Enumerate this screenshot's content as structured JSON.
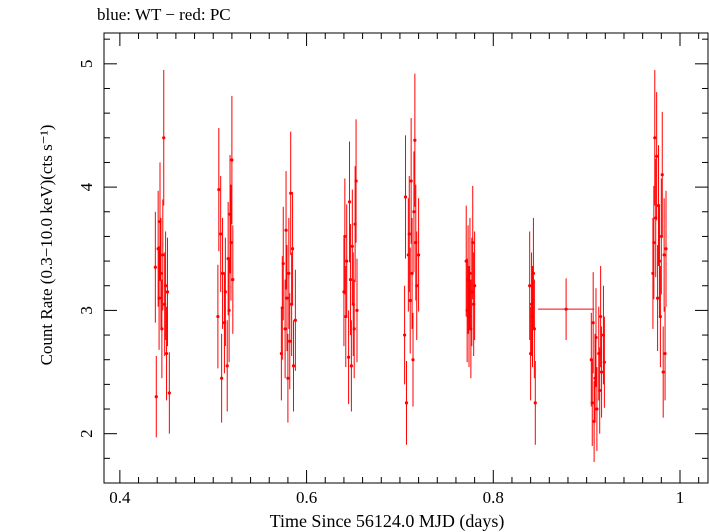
{
  "header": {
    "title": "blue: WT − red: PC"
  },
  "chart_data": {
    "type": "scatter",
    "title": "blue: WT − red: PC",
    "xlabel": "Time Since 56124.0 MJD (days)",
    "ylabel": "Count Rate (0.3−10.0 keV)(cts s⁻¹)",
    "xlim": [
      0.383,
      1.03
    ],
    "ylim": [
      1.6,
      5.25
    ],
    "xticks": [
      0.4,
      0.6,
      0.8,
      1.0
    ],
    "xtick_labels": [
      "0.4",
      "0.6",
      "0.8",
      "1"
    ],
    "yticks": [
      2,
      3,
      4,
      5
    ],
    "ytick_labels": [
      "2",
      "3",
      "4",
      "5"
    ],
    "grid": false,
    "series": [
      {
        "color": "#ff0000",
        "points": [
          {
            "x": 0.438,
            "y": 3.35,
            "err": 0.45
          },
          {
            "x": 0.439,
            "y": 2.3,
            "err": 0.33
          },
          {
            "x": 0.441,
            "y": 3.5,
            "err": 0.47
          },
          {
            "x": 0.442,
            "y": 3.1,
            "err": 0.42
          },
          {
            "x": 0.443,
            "y": 3.72,
            "err": 0.48
          },
          {
            "x": 0.444,
            "y": 3.3,
            "err": 0.45
          },
          {
            "x": 0.445,
            "y": 2.85,
            "err": 0.4
          },
          {
            "x": 0.446,
            "y": 3.45,
            "err": 0.45
          },
          {
            "x": 0.447,
            "y": 4.4,
            "err": 0.55
          },
          {
            "x": 0.448,
            "y": 3.05,
            "err": 0.42
          },
          {
            "x": 0.449,
            "y": 3.2,
            "err": 0.44
          },
          {
            "x": 0.45,
            "y": 2.65,
            "err": 0.38
          },
          {
            "x": 0.451,
            "y": 3.15,
            "err": 0.44
          },
          {
            "x": 0.453,
            "y": 2.33,
            "err": 0.33
          },
          {
            "x": 0.505,
            "y": 2.95,
            "err": 0.42
          },
          {
            "x": 0.506,
            "y": 3.98,
            "err": 0.5
          },
          {
            "x": 0.508,
            "y": 3.62,
            "err": 0.47
          },
          {
            "x": 0.509,
            "y": 2.45,
            "err": 0.36
          },
          {
            "x": 0.51,
            "y": 3.3,
            "err": 0.45
          },
          {
            "x": 0.512,
            "y": 2.9,
            "err": 0.41
          },
          {
            "x": 0.513,
            "y": 3.15,
            "err": 0.44
          },
          {
            "x": 0.515,
            "y": 2.55,
            "err": 0.37
          },
          {
            "x": 0.516,
            "y": 3.42,
            "err": 0.46
          },
          {
            "x": 0.517,
            "y": 3.0,
            "err": 0.42
          },
          {
            "x": 0.518,
            "y": 3.78,
            "err": 0.48
          },
          {
            "x": 0.519,
            "y": 3.55,
            "err": 0.47
          },
          {
            "x": 0.52,
            "y": 4.22,
            "err": 0.52
          },
          {
            "x": 0.521,
            "y": 3.25,
            "err": 0.44
          },
          {
            "x": 0.573,
            "y": 2.65,
            "err": 0.38
          },
          {
            "x": 0.574,
            "y": 3.02,
            "err": 0.42
          },
          {
            "x": 0.575,
            "y": 3.38,
            "err": 0.46
          },
          {
            "x": 0.577,
            "y": 2.85,
            "err": 0.4
          },
          {
            "x": 0.578,
            "y": 3.65,
            "err": 0.48
          },
          {
            "x": 0.579,
            "y": 3.1,
            "err": 0.43
          },
          {
            "x": 0.58,
            "y": 2.45,
            "err": 0.36
          },
          {
            "x": 0.581,
            "y": 3.3,
            "err": 0.45
          },
          {
            "x": 0.582,
            "y": 2.75,
            "err": 0.39
          },
          {
            "x": 0.583,
            "y": 3.95,
            "err": 0.5
          },
          {
            "x": 0.584,
            "y": 3.05,
            "err": 0.42
          },
          {
            "x": 0.585,
            "y": 3.5,
            "err": 0.46
          },
          {
            "x": 0.586,
            "y": 2.55,
            "err": 0.37
          },
          {
            "x": 0.588,
            "y": 2.92,
            "err": 0.41
          },
          {
            "x": 0.64,
            "y": 3.15,
            "err": 0.44
          },
          {
            "x": 0.641,
            "y": 3.6,
            "err": 0.47
          },
          {
            "x": 0.642,
            "y": 2.95,
            "err": 0.41
          },
          {
            "x": 0.643,
            "y": 3.4,
            "err": 0.46
          },
          {
            "x": 0.645,
            "y": 2.62,
            "err": 0.38
          },
          {
            "x": 0.646,
            "y": 3.88,
            "err": 0.49
          },
          {
            "x": 0.647,
            "y": 3.25,
            "err": 0.45
          },
          {
            "x": 0.648,
            "y": 2.55,
            "err": 0.37
          },
          {
            "x": 0.649,
            "y": 3.52,
            "err": 0.46
          },
          {
            "x": 0.65,
            "y": 3.05,
            "err": 0.42
          },
          {
            "x": 0.651,
            "y": 2.85,
            "err": 0.4
          },
          {
            "x": 0.652,
            "y": 3.7,
            "err": 0.47
          },
          {
            "x": 0.653,
            "y": 4.05,
            "err": 0.5
          },
          {
            "x": 0.654,
            "y": 3.0,
            "err": 0.42
          },
          {
            "x": 0.705,
            "y": 2.8,
            "err": 0.4
          },
          {
            "x": 0.706,
            "y": 3.92,
            "err": 0.5
          },
          {
            "x": 0.707,
            "y": 2.25,
            "err": 0.34
          },
          {
            "x": 0.709,
            "y": 3.45,
            "err": 0.46
          },
          {
            "x": 0.71,
            "y": 3.62,
            "err": 0.47
          },
          {
            "x": 0.711,
            "y": 3.08,
            "err": 0.43
          },
          {
            "x": 0.712,
            "y": 4.05,
            "err": 0.51
          },
          {
            "x": 0.713,
            "y": 3.3,
            "err": 0.45
          },
          {
            "x": 0.714,
            "y": 2.6,
            "err": 0.38
          },
          {
            "x": 0.715,
            "y": 3.8,
            "err": 0.49
          },
          {
            "x": 0.716,
            "y": 4.38,
            "err": 0.54
          },
          {
            "x": 0.717,
            "y": 3.55,
            "err": 0.47
          },
          {
            "x": 0.718,
            "y": 3.2,
            "err": 0.44
          },
          {
            "x": 0.72,
            "y": 3.45,
            "err": 0.46
          },
          {
            "x": 0.771,
            "y": 3.4,
            "err": 0.45
          },
          {
            "x": 0.772,
            "y": 3.0,
            "err": 0.42
          },
          {
            "x": 0.773,
            "y": 3.25,
            "err": 0.44
          },
          {
            "x": 0.774,
            "y": 2.95,
            "err": 0.41
          },
          {
            "x": 0.775,
            "y": 3.3,
            "err": 0.45
          },
          {
            "x": 0.776,
            "y": 2.85,
            "err": 0.4
          },
          {
            "x": 0.777,
            "y": 3.15,
            "err": 0.44
          },
          {
            "x": 0.778,
            "y": 3.55,
            "err": 0.46
          },
          {
            "x": 0.779,
            "y": 3.05,
            "err": 0.42
          },
          {
            "x": 0.78,
            "y": 3.2,
            "err": 0.44
          },
          {
            "x": 0.839,
            "y": 3.2,
            "err": 0.44
          },
          {
            "x": 0.84,
            "y": 2.65,
            "err": 0.38
          },
          {
            "x": 0.841,
            "y": 3.05,
            "err": 0.42
          },
          {
            "x": 0.842,
            "y": 2.95,
            "err": 0.41
          },
          {
            "x": 0.843,
            "y": 3.3,
            "err": 0.45
          },
          {
            "x": 0.844,
            "y": 2.85,
            "err": 0.4
          },
          {
            "x": 0.845,
            "y": 2.25,
            "err": 0.34
          },
          {
            "x": 0.878,
            "y": 3.01,
            "err": 0.25,
            "xerr": 0.03
          },
          {
            "x": 0.905,
            "y": 2.6,
            "err": 0.38
          },
          {
            "x": 0.906,
            "y": 2.25,
            "err": 0.35
          },
          {
            "x": 0.907,
            "y": 2.9,
            "err": 0.41
          },
          {
            "x": 0.908,
            "y": 2.1,
            "err": 0.33
          },
          {
            "x": 0.909,
            "y": 2.45,
            "err": 0.36
          },
          {
            "x": 0.91,
            "y": 2.78,
            "err": 0.4
          },
          {
            "x": 0.911,
            "y": 2.2,
            "err": 0.34
          },
          {
            "x": 0.913,
            "y": 2.65,
            "err": 0.38
          },
          {
            "x": 0.914,
            "y": 2.35,
            "err": 0.35
          },
          {
            "x": 0.915,
            "y": 2.95,
            "err": 0.41
          },
          {
            "x": 0.916,
            "y": 2.5,
            "err": 0.37
          },
          {
            "x": 0.918,
            "y": 2.8,
            "err": 0.4
          },
          {
            "x": 0.919,
            "y": 2.58,
            "err": 0.37
          },
          {
            "x": 0.971,
            "y": 3.3,
            "err": 0.45
          },
          {
            "x": 0.972,
            "y": 3.55,
            "err": 0.46
          },
          {
            "x": 0.973,
            "y": 4.4,
            "err": 0.55
          },
          {
            "x": 0.974,
            "y": 3.75,
            "err": 0.48
          },
          {
            "x": 0.975,
            "y": 4.25,
            "err": 0.52
          },
          {
            "x": 0.976,
            "y": 3.1,
            "err": 0.43
          },
          {
            "x": 0.977,
            "y": 3.85,
            "err": 0.49
          },
          {
            "x": 0.978,
            "y": 3.4,
            "err": 0.46
          },
          {
            "x": 0.979,
            "y": 2.95,
            "err": 0.41
          },
          {
            "x": 0.98,
            "y": 3.6,
            "err": 0.47
          },
          {
            "x": 0.981,
            "y": 4.1,
            "err": 0.51
          },
          {
            "x": 0.982,
            "y": 2.5,
            "err": 0.37
          },
          {
            "x": 0.983,
            "y": 3.45,
            "err": 0.46
          },
          {
            "x": 0.984,
            "y": 2.65,
            "err": 0.38
          },
          {
            "x": 0.985,
            "y": 3.5,
            "err": 0.47
          }
        ]
      }
    ]
  }
}
